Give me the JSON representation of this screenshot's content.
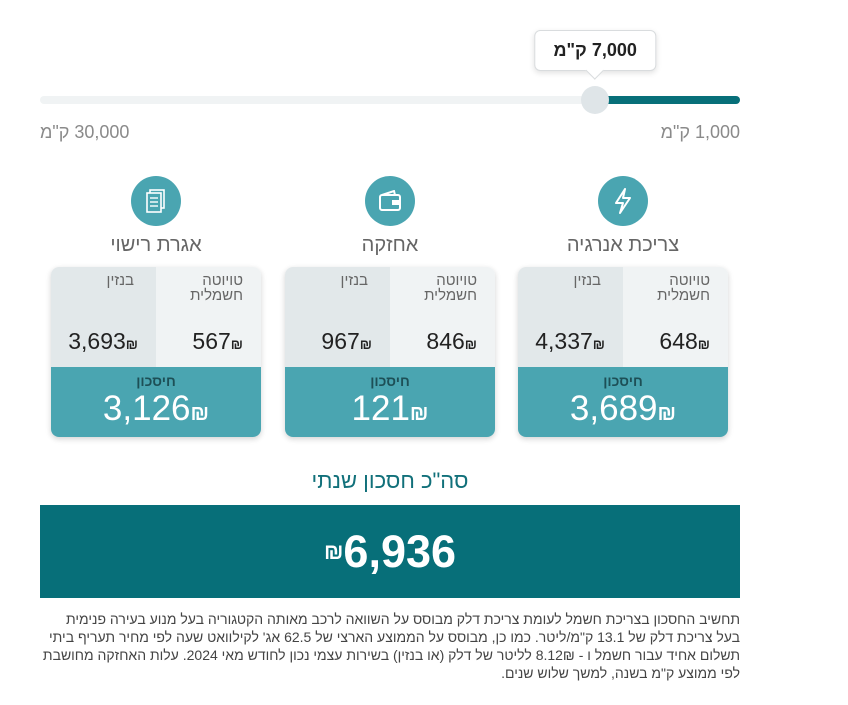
{
  "slider": {
    "value_fraction": 0.2069,
    "tooltip": "7,000 ק\"מ",
    "min_label": "1,000 ק\"מ",
    "max_label": "30,000 ק\"מ"
  },
  "colors": {
    "primary": "#076f79",
    "accent": "#4aa5b1"
  },
  "categories": [
    {
      "title": "צריכת אנרגיה",
      "icon": "lightning-bolt-icon",
      "electric_label": "טויוטה חשמלית",
      "electric_value": "648",
      "gas_label": "בנזין",
      "gas_value": "4,337",
      "saving_label": "חיסכון",
      "saving_value": "3,689"
    },
    {
      "title": "אחזקה",
      "icon": "wallet-icon",
      "electric_label": "טויוטה חשמלית",
      "electric_value": "846",
      "gas_label": "בנזין",
      "gas_value": "967",
      "saving_label": "חיסכון",
      "saving_value": "121"
    },
    {
      "title": "אגרת רישוי",
      "icon": "document-icon",
      "electric_label": "טויוטה חשמלית",
      "electric_value": "567",
      "gas_label": "בנזין",
      "gas_value": "3,693",
      "saving_label": "חיסכון",
      "saving_value": "3,126"
    }
  ],
  "currency_symbol": "₪",
  "total": {
    "title": "סה\"כ חסכון שנתי",
    "value": "6,936"
  },
  "footnote": "תחשיב החסכון בצריכת חשמל לעומת צריכת דלק מבוסס על השוואה לרכב מאותה הקטגוריה בעל מנוע בעירה פנימית בעל צריכת דלק של 13.1 ק\"מ/ליטר. כמו כן, מבוסס על הממוצע הארצי של 62.5 אג' לקילוואט שעה לפי מחיר תעריף ביתי תשלום אחיד עבור חשמל ו - 8.12₪ לליטר של דלק (או בנזין) בשירות עצמי נכון לחודש מאי 2024. עלות האחזקה מחושבת לפי ממוצע ק\"מ בשנה, למשך שלוש שנים."
}
